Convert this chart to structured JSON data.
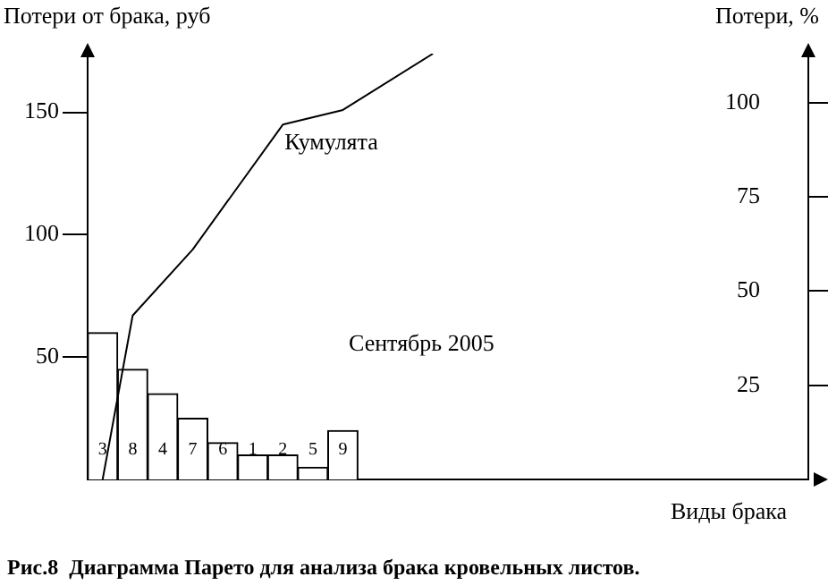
{
  "chart_data": {
    "type": "bar",
    "categories": [
      "3",
      "8",
      "4",
      "7",
      "6",
      "1",
      "2",
      "5",
      "9",
      null,
      null,
      null,
      null,
      null,
      null,
      null,
      null,
      null,
      null,
      null,
      null,
      null,
      null,
      null
    ],
    "series": [
      {
        "color": "#ffffff",
        "values": [
          60,
          45,
          35,
          25,
          15,
          10,
          10,
          5,
          20,
          null,
          null,
          null,
          null,
          null,
          null,
          null,
          null,
          null,
          null,
          null,
          null,
          null,
          null,
          null
        ]
      },
      {
        "type": "line",
        "name": "Кумулята",
        "color": "#000000",
        "values": [
          0,
          67,
          null,
          94,
          null,
          null,
          145,
          null,
          151,
          null,
          null,
          174,
          null,
          null,
          null,
          null,
          null,
          null,
          null,
          null,
          null,
          null,
          null,
          null
        ]
      }
    ],
    "xlabel": "Виды брака",
    "ylabel": "Потери от брака, руб",
    "y2label": "Потери, %",
    "ylim": [
      0,
      174
    ],
    "yticks": [
      50,
      100,
      150
    ],
    "y2lim": [
      0,
      113
    ],
    "y2ticks": [
      25,
      50,
      75,
      100
    ],
    "annotations": [
      "Сентябрь 2005",
      "Рис.8  Диаграмма Парето для анализа брака кровельных листов."
    ],
    "tick_labels": "y",
    "grid": false,
    "legend": false,
    "marker": "none",
    "line_style": "solid"
  }
}
